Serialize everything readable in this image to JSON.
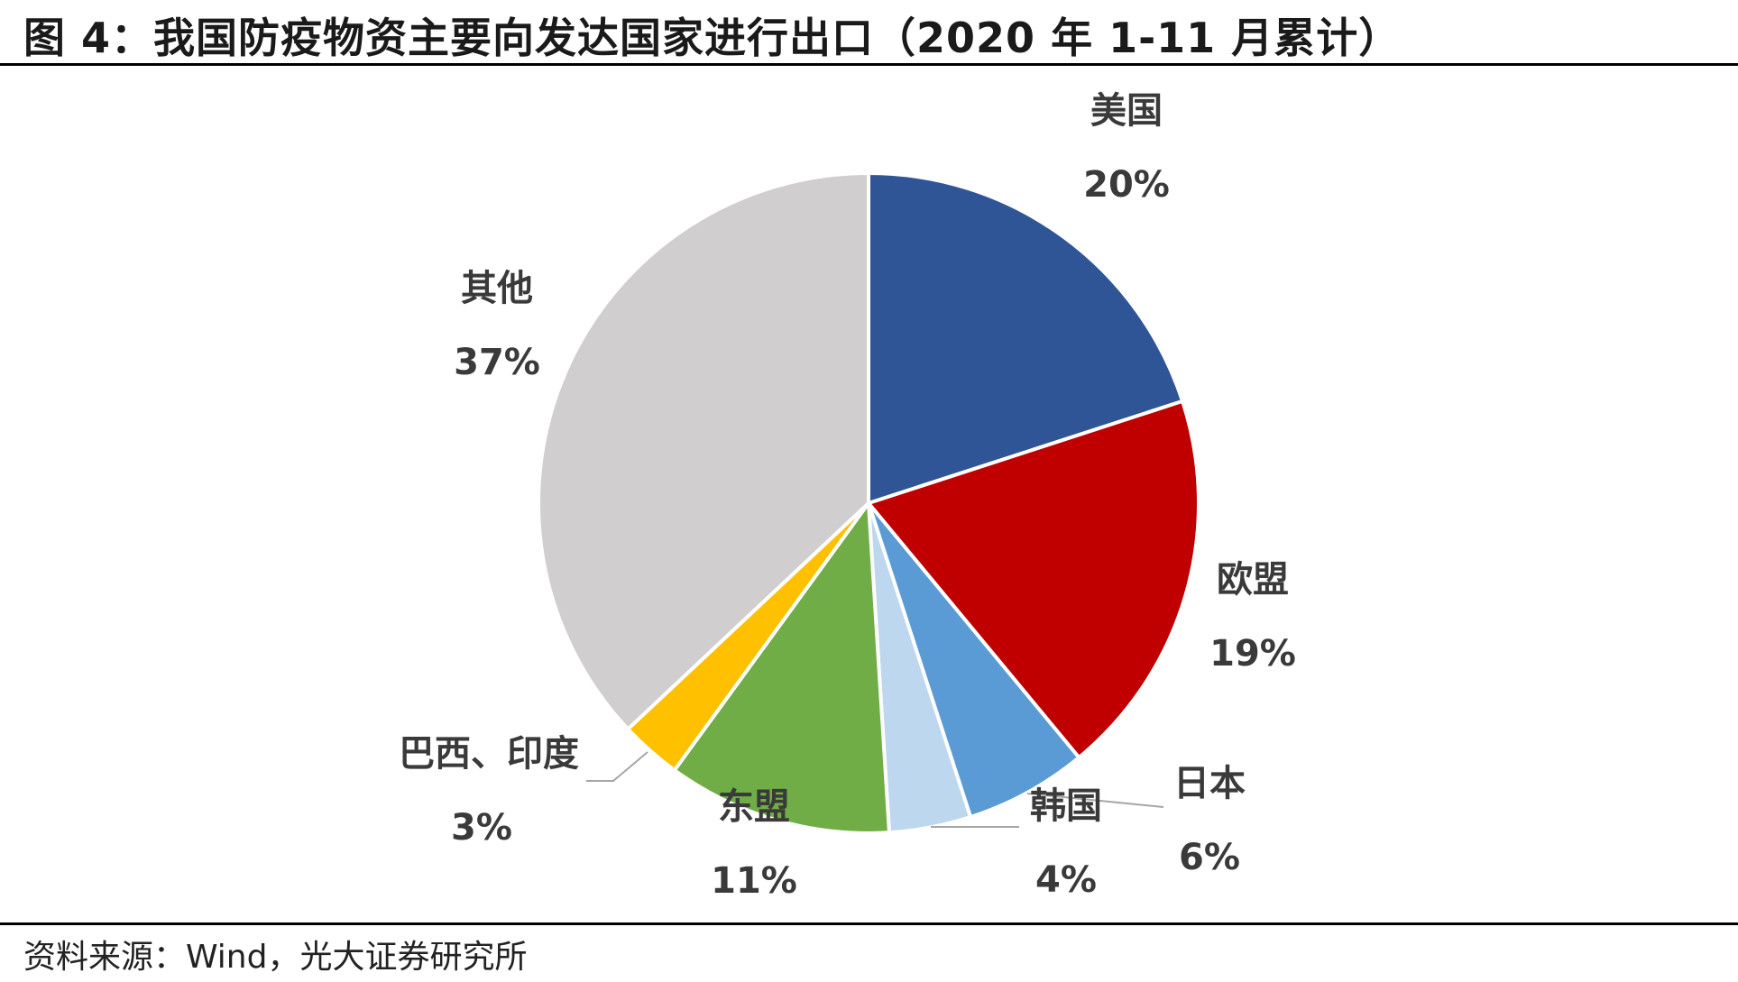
{
  "title": "图 4：我国防疫物资主要向发达国家进行出口（2020 年 1-11 月累计）",
  "source": "资料来源：Wind，光大证券研究所",
  "chart_data": {
    "type": "pie",
    "start": "12 o'clock, clockwise",
    "slices": [
      {
        "label": "美国",
        "value": 20,
        "value_label": "20%",
        "color": "#2F5597"
      },
      {
        "label": "欧盟",
        "value": 19,
        "value_label": "19%",
        "color": "#C00000"
      },
      {
        "label": "日本",
        "value": 6,
        "value_label": "6%",
        "color": "#5B9BD5"
      },
      {
        "label": "韩国",
        "value": 4,
        "value_label": "4%",
        "color": "#BDD7EE"
      },
      {
        "label": "东盟",
        "value": 11,
        "value_label": "11%",
        "color": "#70AD47"
      },
      {
        "label": "巴西、印度",
        "value": 3,
        "value_label": "3%",
        "color": "#FFC000"
      },
      {
        "label": "其他",
        "value": 37,
        "value_label": "37%",
        "color": "#D0CECE"
      }
    ]
  }
}
